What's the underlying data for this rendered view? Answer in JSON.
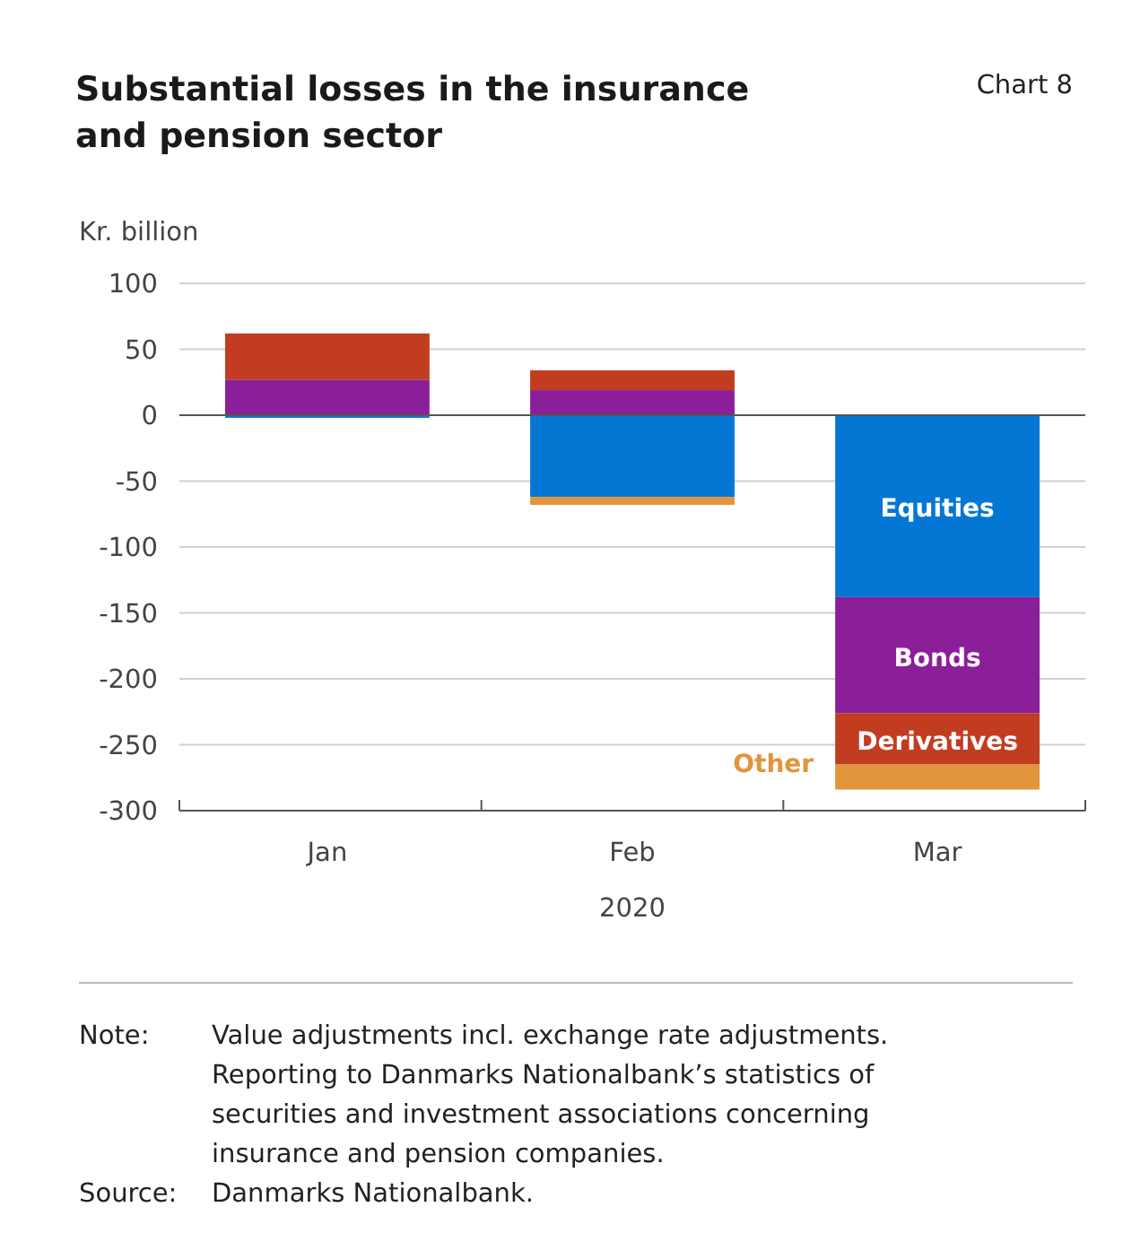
{
  "chart_data": {
    "type": "bar",
    "title": "Substantial losses in the insurance and pension sector",
    "ylabel": "Kr. billion",
    "xlabel": "2020",
    "categories": [
      "Jan",
      "Feb",
      "Mar"
    ],
    "series": [
      {
        "name": "Equities",
        "color": "#0477d4",
        "values": [
          -2,
          -62,
          -138
        ]
      },
      {
        "name": "Bonds",
        "color": "#8b1f9a",
        "values": [
          27,
          19,
          -88
        ]
      },
      {
        "name": "Derivatives",
        "color": "#c23c22",
        "values": [
          35,
          15,
          -39
        ]
      },
      {
        "name": "Other",
        "color": "#e2953a",
        "values": [
          0,
          -6,
          -19
        ]
      }
    ],
    "stacked": true,
    "ylim": [
      -300,
      100
    ],
    "yticks": [
      -300,
      -250,
      -200,
      -150,
      -100,
      -50,
      0,
      50,
      100
    ],
    "grid": "y",
    "annotations": [
      "Chart 8",
      "Note: Value adjustments incl. exchange rate adjustments. Reporting to Danmarks Nationalbank’s statistics of securities and investment associations concerning insurance and pension companies.",
      "Source: Danmarks Nationalbank."
    ]
  }
}
